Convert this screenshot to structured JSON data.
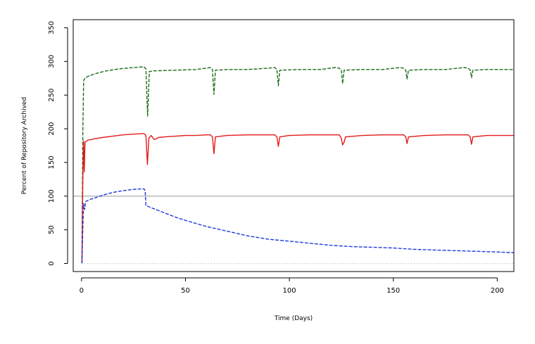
{
  "chart_data": {
    "type": "line",
    "title": "",
    "xlabel": "Time (Days)",
    "ylabel": "Percent of Repository Archived",
    "xlim": [
      -4,
      208
    ],
    "ylim": [
      -12,
      362
    ],
    "x_ticks": [
      0,
      50,
      100,
      150,
      200
    ],
    "y_ticks": [
      0,
      50,
      100,
      150,
      200,
      250,
      300,
      350
    ],
    "x_tick_labels": [
      "0",
      "50",
      "100",
      "150",
      "200"
    ],
    "y_tick_labels": [
      "0",
      "50",
      "100",
      "150",
      "200",
      "250",
      "300",
      "350"
    ],
    "grid": false,
    "legend": "none",
    "reference_line": {
      "y": 100,
      "color": "#c8c8c8"
    },
    "series": [
      {
        "color": "#1a6e1a",
        "style": "dashed",
        "points": [
          [
            0.2,
            0
          ],
          [
            0.6,
            190
          ],
          [
            1,
            272
          ],
          [
            2,
            276
          ],
          [
            4,
            279
          ],
          [
            8,
            283
          ],
          [
            12,
            286
          ],
          [
            18,
            289
          ],
          [
            25,
            291
          ],
          [
            30,
            292
          ],
          [
            31,
            289
          ],
          [
            31.8,
            219
          ],
          [
            32.6,
            285
          ],
          [
            35,
            286
          ],
          [
            45,
            287
          ],
          [
            55,
            288
          ],
          [
            60,
            290
          ],
          [
            62,
            291
          ],
          [
            63,
            288
          ],
          [
            63.7,
            251
          ],
          [
            64.4,
            287
          ],
          [
            70,
            288
          ],
          [
            80,
            288
          ],
          [
            90,
            290
          ],
          [
            93,
            291
          ],
          [
            94,
            288
          ],
          [
            94.7,
            264
          ],
          [
            95.4,
            287
          ],
          [
            105,
            288
          ],
          [
            115,
            288
          ],
          [
            122,
            291
          ],
          [
            124,
            290
          ],
          [
            125,
            287
          ],
          [
            125.6,
            267
          ],
          [
            126.3,
            287
          ],
          [
            135,
            288
          ],
          [
            145,
            288
          ],
          [
            153,
            291
          ],
          [
            155,
            290
          ],
          [
            156,
            287
          ],
          [
            156.6,
            274
          ],
          [
            157.3,
            287
          ],
          [
            165,
            288
          ],
          [
            175,
            288
          ],
          [
            184,
            291
          ],
          [
            186,
            290
          ],
          [
            187,
            287
          ],
          [
            187.6,
            276
          ],
          [
            188.3,
            287
          ],
          [
            195,
            288
          ],
          [
            208,
            288
          ]
        ]
      },
      {
        "color": "#e41a1c",
        "style": "solid",
        "points": [
          [
            0.2,
            0
          ],
          [
            0.6,
            120
          ],
          [
            1,
            182
          ],
          [
            1.3,
            136
          ],
          [
            1.7,
            180
          ],
          [
            3,
            183
          ],
          [
            6,
            185
          ],
          [
            10,
            187
          ],
          [
            15,
            189
          ],
          [
            20,
            191
          ],
          [
            25,
            192
          ],
          [
            30,
            193
          ],
          [
            31,
            190
          ],
          [
            31.7,
            147
          ],
          [
            32.4,
            186
          ],
          [
            33.5,
            190
          ],
          [
            35,
            184
          ],
          [
            37,
            187
          ],
          [
            40,
            188
          ],
          [
            45,
            189
          ],
          [
            50,
            190
          ],
          [
            55,
            190
          ],
          [
            60,
            191
          ],
          [
            62,
            191
          ],
          [
            63,
            188
          ],
          [
            63.7,
            163
          ],
          [
            64.4,
            188
          ],
          [
            70,
            190
          ],
          [
            80,
            191
          ],
          [
            90,
            191
          ],
          [
            93,
            191
          ],
          [
            94,
            188
          ],
          [
            94.7,
            174
          ],
          [
            95.4,
            188
          ],
          [
            100,
            190
          ],
          [
            110,
            191
          ],
          [
            120,
            191
          ],
          [
            124,
            191
          ],
          [
            125,
            186
          ],
          [
            125.6,
            176
          ],
          [
            126.3,
            180
          ],
          [
            127,
            188
          ],
          [
            135,
            190
          ],
          [
            145,
            191
          ],
          [
            155,
            191
          ],
          [
            156,
            188
          ],
          [
            156.6,
            178
          ],
          [
            157.3,
            188
          ],
          [
            165,
            190
          ],
          [
            175,
            191
          ],
          [
            186,
            191
          ],
          [
            187,
            188
          ],
          [
            187.6,
            177
          ],
          [
            188.3,
            188
          ],
          [
            195,
            190
          ],
          [
            208,
            190
          ]
        ]
      },
      {
        "color": "#1f3adf",
        "style": "dashed",
        "points": [
          [
            0.2,
            0
          ],
          [
            0.6,
            50
          ],
          [
            1,
            89
          ],
          [
            1.5,
            80
          ],
          [
            2,
            92
          ],
          [
            4,
            95
          ],
          [
            8,
            99
          ],
          [
            12,
            103
          ],
          [
            16,
            106
          ],
          [
            20,
            108
          ],
          [
            25,
            110
          ],
          [
            30,
            111
          ],
          [
            30.6,
            108
          ],
          [
            31,
            86
          ],
          [
            35,
            81
          ],
          [
            40,
            75
          ],
          [
            45,
            69
          ],
          [
            50,
            64
          ],
          [
            60,
            55
          ],
          [
            70,
            48
          ],
          [
            80,
            41
          ],
          [
            90,
            36
          ],
          [
            100,
            33
          ],
          [
            110,
            30
          ],
          [
            120,
            27
          ],
          [
            130,
            25
          ],
          [
            140,
            24
          ],
          [
            150,
            23
          ],
          [
            160,
            21
          ],
          [
            170,
            20
          ],
          [
            180,
            19
          ],
          [
            190,
            18
          ],
          [
            200,
            17
          ],
          [
            208,
            16
          ]
        ]
      },
      {
        "color": "#aaaaaa",
        "style": "dotted",
        "points": [
          [
            0,
            0
          ],
          [
            208,
            0
          ]
        ]
      }
    ]
  }
}
